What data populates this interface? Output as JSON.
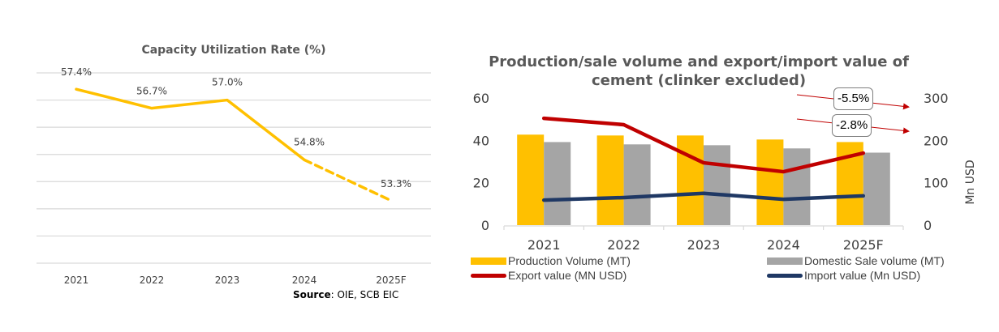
{
  "chart_data": [
    {
      "type": "line",
      "title": "Capacity Utilization Rate (%)",
      "categories": [
        "2021",
        "2022",
        "2023",
        "2024",
        "2025F"
      ],
      "series": [
        {
          "name": "Capacity Utilization Rate",
          "values": [
            57.4,
            56.7,
            57.0,
            54.8,
            53.3
          ],
          "labels": [
            "57.4%",
            "56.7%",
            "57.0%",
            "54.8%",
            "53.3%"
          ],
          "forecast_from_index": 3,
          "color": "#FFC000"
        }
      ],
      "ylim": [
        51,
        58
      ],
      "ytick_step": 1,
      "yticks_visible": false,
      "grid": true,
      "xlabel": "",
      "ylabel": "",
      "source_label": "Source",
      "source_text": ": OIE, SCB EIC"
    },
    {
      "type": "bar",
      "title_lines": [
        "Production/sale volume and export/import value of",
        "cement (clinker excluded)"
      ],
      "categories": [
        "2021",
        "2022",
        "2023",
        "2024",
        "2025F"
      ],
      "left_axis": {
        "ylim": [
          0,
          60
        ],
        "ticks": [
          "0",
          "20",
          "40",
          "60"
        ],
        "label": ""
      },
      "right_axis": {
        "ylim": [
          0,
          300
        ],
        "ticks": [
          "0",
          "100",
          "200",
          "300"
        ],
        "label": "Mn USD"
      },
      "series": [
        {
          "name": "Production Volume (MT)",
          "kind": "bar",
          "axis": "left",
          "color": "#FFC000",
          "values": [
            42.7,
            42.3,
            42.3,
            40.4,
            39.2
          ]
        },
        {
          "name": "Domestic Sale volume (MT)",
          "kind": "bar",
          "axis": "left",
          "color": "#A5A5A5",
          "values": [
            39.2,
            38.1,
            37.7,
            36.2,
            34.2
          ]
        },
        {
          "name": "Export value (MN USD)",
          "kind": "line",
          "axis": "right",
          "color": "#C00000",
          "values": [
            252,
            237,
            147,
            126,
            170
          ]
        },
        {
          "name": "Import value (Mn USD)",
          "kind": "line",
          "axis": "right",
          "color": "#1F3864",
          "values": [
            59,
            65,
            75,
            61,
            69
          ]
        }
      ],
      "annotations": [
        {
          "text": "-5.5%"
        },
        {
          "text": "-2.8%"
        }
      ],
      "legend": "bottom",
      "grid": false
    }
  ]
}
